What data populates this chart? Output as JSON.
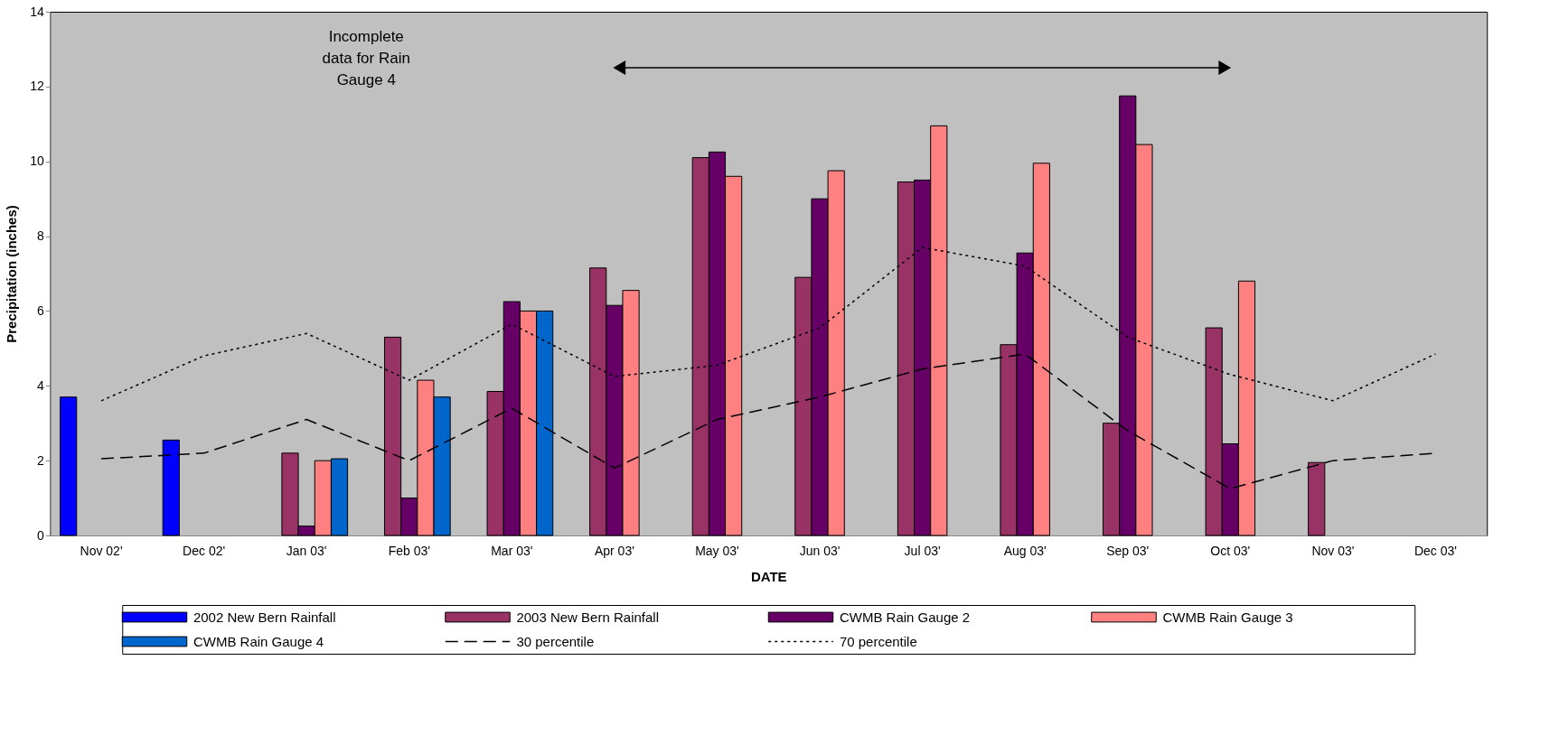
{
  "chart_data": {
    "type": "bar",
    "xlabel": "DATE",
    "ylabel": "Precipitation (inches)",
    "categories": [
      "Nov 02'",
      "Dec 02'",
      "Jan 03'",
      "Feb 03'",
      "Mar 03'",
      "Apr 03'",
      "May 03'",
      "Jun 03'",
      "Jul 03'",
      "Aug 03'",
      "Sep 03'",
      "Oct 03'",
      "Nov 03'",
      "Dec 03'"
    ],
    "series": [
      {
        "name": "2002 New Bern Rainfall",
        "color": "#0000ff",
        "values": [
          3.7,
          2.55,
          null,
          null,
          null,
          null,
          null,
          null,
          null,
          null,
          null,
          null,
          null,
          null
        ]
      },
      {
        "name": "2003 New Bern Rainfall",
        "color": "#993366",
        "values": [
          null,
          null,
          2.2,
          5.3,
          3.85,
          7.15,
          10.1,
          6.9,
          9.45,
          5.1,
          3.0,
          5.55,
          1.95,
          null
        ]
      },
      {
        "name": "CWMB Rain Gauge 2",
        "color": "#660066",
        "values": [
          null,
          null,
          0.25,
          1.0,
          6.25,
          6.15,
          10.25,
          9.0,
          9.5,
          7.55,
          11.75,
          2.45,
          null,
          null
        ]
      },
      {
        "name": "CWMB Rain Gauge 3",
        "color": "#ff8080",
        "values": [
          null,
          null,
          2.0,
          4.15,
          6.0,
          6.55,
          9.6,
          9.75,
          10.95,
          9.95,
          10.45,
          6.8,
          null,
          null
        ]
      },
      {
        "name": "CWMB Rain Gauge 4",
        "color": "#0066cc",
        "values": [
          null,
          null,
          2.05,
          3.7,
          6.0,
          null,
          null,
          null,
          null,
          null,
          null,
          null,
          null,
          null
        ]
      },
      {
        "name": "30 percentile",
        "type": "line",
        "line_style": "dashed",
        "color": "#000000",
        "values": [
          2.05,
          2.2,
          3.1,
          2.0,
          3.4,
          1.8,
          3.1,
          3.7,
          4.45,
          4.85,
          2.8,
          1.25,
          2.0,
          2.2
        ]
      },
      {
        "name": "70 percentile",
        "type": "line",
        "line_style": "dotted",
        "color": "#000000",
        "values": [
          3.6,
          4.8,
          5.4,
          4.15,
          5.65,
          4.25,
          4.55,
          5.55,
          7.7,
          7.2,
          5.3,
          4.3,
          3.6,
          4.85
        ]
      }
    ],
    "ylim": [
      0,
      14
    ],
    "yticks": [
      0,
      2,
      4,
      6,
      8,
      10,
      12,
      14
    ],
    "grid": false,
    "legend": "bottom",
    "annotations": [
      "Incomplete data for Rain Gauge 4"
    ]
  }
}
